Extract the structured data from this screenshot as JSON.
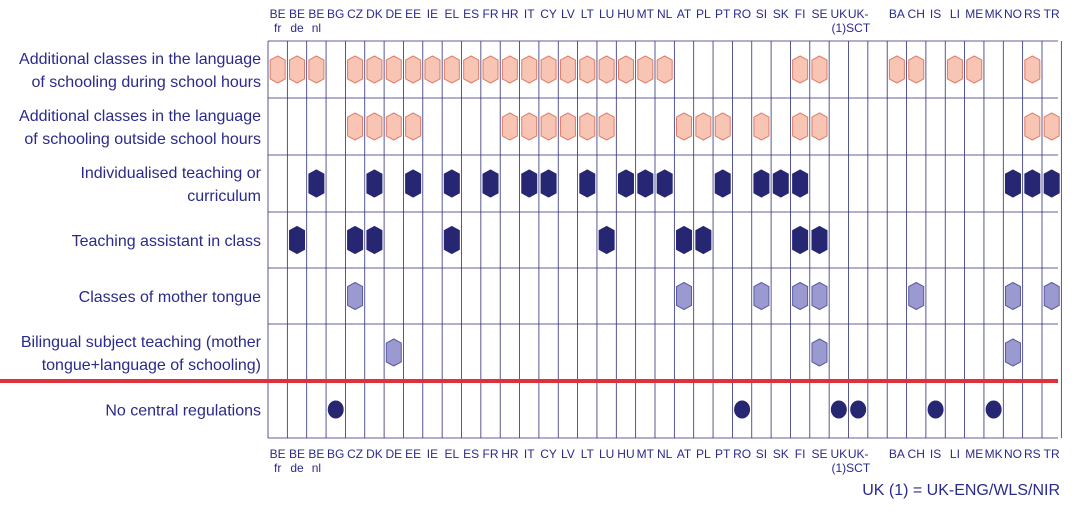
{
  "colors": {
    "grid": "#2e2e7a",
    "separator": "#e0303a",
    "pink_fill": "#f8c4b4",
    "pink_stroke": "#e07d66",
    "navy": "#262673",
    "lavender_fill": "#9a9ad0",
    "lavender_stroke": "#5a5aa0"
  },
  "footnote": "UK (1) = UK-ENG/WLS/NIR",
  "chart_data": {
    "type": "table",
    "columns": [
      [
        "BE",
        "fr"
      ],
      [
        "BE",
        "de"
      ],
      [
        "BE",
        "nl"
      ],
      [
        "BG"
      ],
      [
        "CZ"
      ],
      [
        "DK"
      ],
      [
        "DE"
      ],
      [
        "EE"
      ],
      [
        "IE"
      ],
      [
        "EL"
      ],
      [
        "ES"
      ],
      [
        "FR"
      ],
      [
        "HR"
      ],
      [
        "IT"
      ],
      [
        "CY"
      ],
      [
        "LV"
      ],
      [
        "LT"
      ],
      [
        "LU"
      ],
      [
        "HU"
      ],
      [
        "MT"
      ],
      [
        "NL"
      ],
      [
        "AT"
      ],
      [
        "PL"
      ],
      [
        "PT"
      ],
      [
        "RO"
      ],
      [
        "SI"
      ],
      [
        "SK"
      ],
      [
        "FI"
      ],
      [
        "SE"
      ],
      [
        "UK",
        "(1)"
      ],
      [
        "UK-",
        "SCT"
      ],
      [
        ""
      ],
      [
        "BA"
      ],
      [
        "CH"
      ],
      [
        "IS"
      ],
      [
        "LI"
      ],
      [
        "ME"
      ],
      [
        "MK"
      ],
      [
        "NO"
      ],
      [
        "RS"
      ],
      [
        "TR"
      ]
    ],
    "rows": [
      {
        "label": [
          "Additional classes in the language",
          "of schooling during school hours"
        ],
        "marker": "pink-hex",
        "values": [
          1,
          1,
          1,
          0,
          1,
          1,
          1,
          1,
          1,
          1,
          1,
          1,
          1,
          1,
          1,
          1,
          1,
          1,
          1,
          1,
          1,
          0,
          0,
          0,
          0,
          0,
          0,
          1,
          1,
          0,
          0,
          0,
          1,
          1,
          0,
          1,
          1,
          0,
          0,
          1,
          0
        ]
      },
      {
        "label": [
          "Additional classes in the language",
          "of schooling outside school hours"
        ],
        "marker": "pink-hex",
        "values": [
          0,
          0,
          0,
          0,
          1,
          1,
          1,
          1,
          0,
          0,
          0,
          0,
          1,
          1,
          1,
          1,
          1,
          1,
          0,
          0,
          0,
          1,
          1,
          1,
          0,
          1,
          0,
          1,
          1,
          0,
          0,
          0,
          0,
          0,
          0,
          0,
          0,
          0,
          0,
          1,
          1
        ]
      },
      {
        "label": [
          "Individualised teaching or",
          "curriculum"
        ],
        "marker": "navy-hex",
        "values": [
          0,
          0,
          1,
          0,
          0,
          1,
          0,
          1,
          0,
          1,
          0,
          1,
          0,
          1,
          1,
          0,
          1,
          0,
          1,
          1,
          1,
          0,
          0,
          1,
          0,
          1,
          1,
          1,
          0,
          0,
          0,
          0,
          0,
          0,
          0,
          0,
          0,
          0,
          1,
          1,
          1
        ]
      },
      {
        "label": [
          "Teaching assistant in class"
        ],
        "marker": "navy-hex",
        "values": [
          0,
          1,
          0,
          0,
          1,
          1,
          0,
          0,
          0,
          1,
          0,
          0,
          0,
          0,
          0,
          0,
          0,
          1,
          0,
          0,
          0,
          1,
          1,
          0,
          0,
          0,
          0,
          1,
          1,
          0,
          0,
          0,
          0,
          0,
          0,
          0,
          0,
          0,
          0,
          0,
          0
        ]
      },
      {
        "label": [
          "Classes of mother tongue"
        ],
        "marker": "lavender-hex",
        "values": [
          0,
          0,
          0,
          0,
          1,
          0,
          0,
          0,
          0,
          0,
          0,
          0,
          0,
          0,
          0,
          0,
          0,
          0,
          0,
          0,
          0,
          1,
          0,
          0,
          0,
          1,
          0,
          1,
          1,
          0,
          0,
          0,
          0,
          1,
          0,
          0,
          0,
          0,
          1,
          0,
          1
        ]
      },
      {
        "label": [
          "Bilingual subject teaching (mother",
          "tongue+language of schooling)"
        ],
        "marker": "lavender-hex",
        "values": [
          0,
          0,
          0,
          0,
          0,
          0,
          1,
          0,
          0,
          0,
          0,
          0,
          0,
          0,
          0,
          0,
          0,
          0,
          0,
          0,
          0,
          0,
          0,
          0,
          0,
          0,
          0,
          0,
          1,
          0,
          0,
          0,
          0,
          0,
          0,
          0,
          0,
          0,
          1,
          0,
          0
        ]
      },
      {
        "label": [
          "No central regulations"
        ],
        "marker": "navy-circle",
        "values": [
          0,
          0,
          0,
          1,
          0,
          0,
          0,
          0,
          0,
          0,
          0,
          0,
          0,
          0,
          0,
          0,
          0,
          0,
          0,
          0,
          0,
          0,
          0,
          0,
          1,
          0,
          0,
          0,
          0,
          1,
          1,
          0,
          0,
          0,
          1,
          0,
          0,
          1,
          0,
          0,
          0
        ]
      }
    ],
    "separator_after_row": 5
  }
}
